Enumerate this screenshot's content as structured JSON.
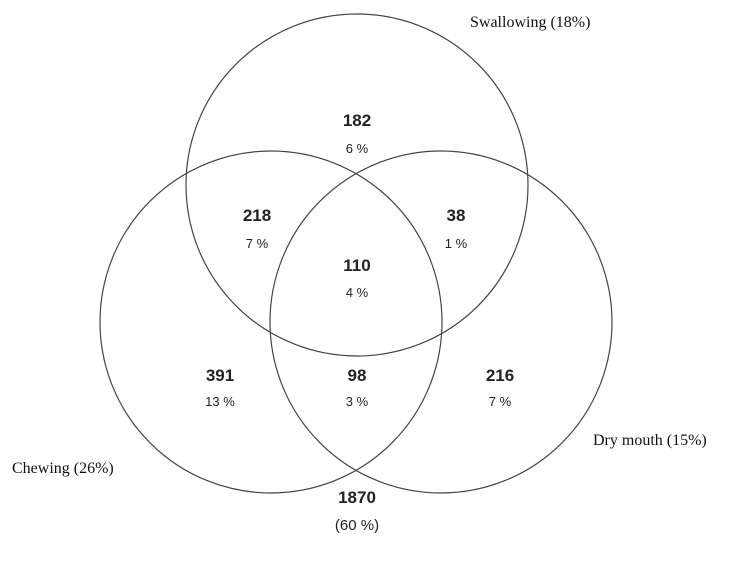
{
  "sets": [
    {
      "label": "Swallowing (18%)"
    },
    {
      "label": "Dry mouth (15%)"
    },
    {
      "label": "Chewing (26%)"
    }
  ],
  "regions": [
    {
      "count": "182",
      "percent": "6 %"
    },
    {
      "count": "218",
      "percent": "7 %"
    },
    {
      "count": "38",
      "percent": "1 %"
    },
    {
      "count": "110",
      "percent": "4 %"
    },
    {
      "count": "391",
      "percent": "13 %"
    },
    {
      "count": "98",
      "percent": "3 %"
    },
    {
      "count": "216",
      "percent": "7 %"
    }
  ],
  "outside": {
    "count": "1870",
    "percent": "(60 %)"
  }
}
